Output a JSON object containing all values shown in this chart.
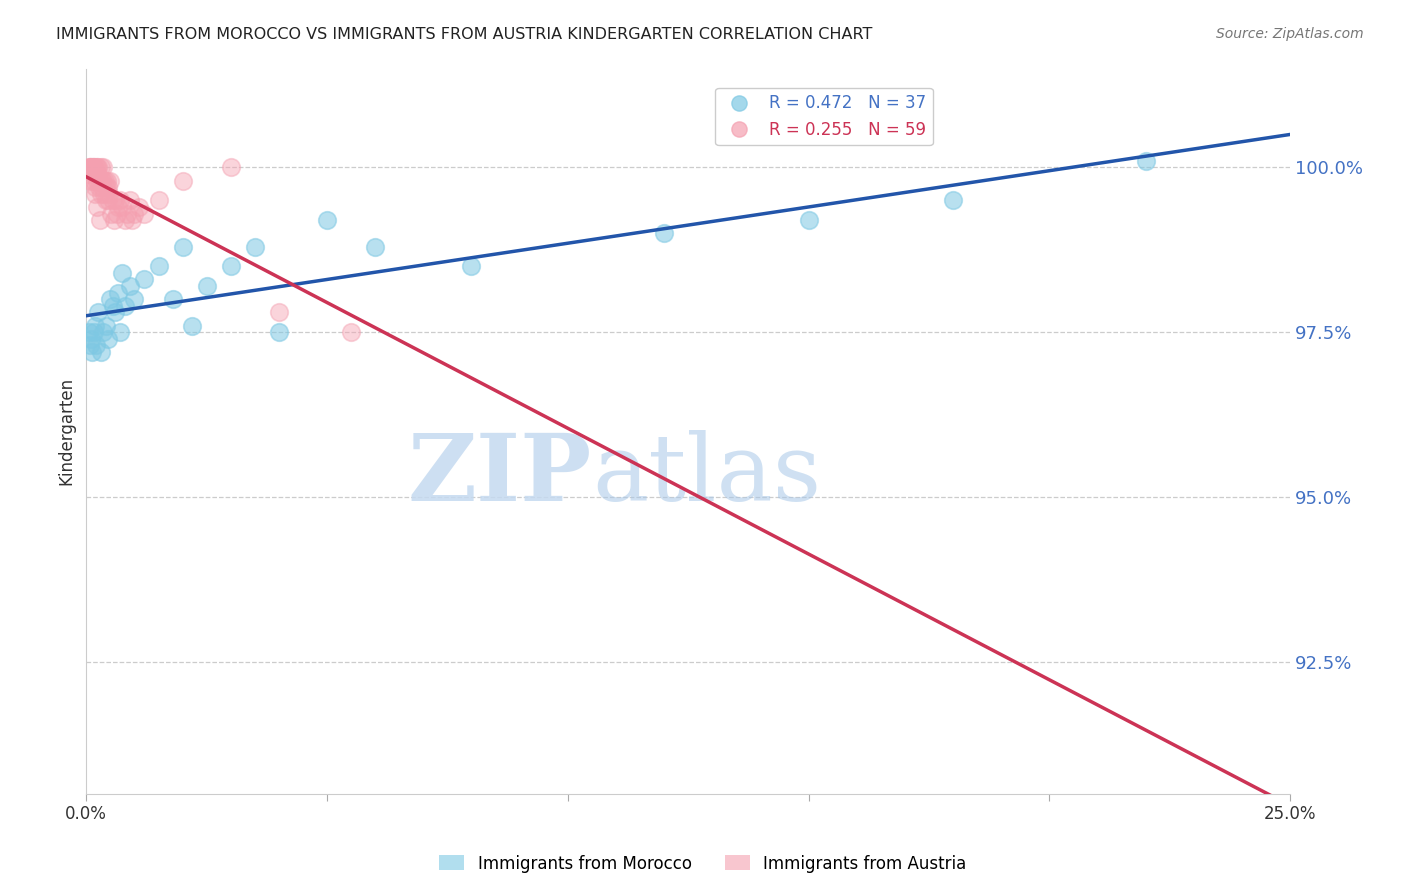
{
  "title": "IMMIGRANTS FROM MOROCCO VS IMMIGRANTS FROM AUSTRIA KINDERGARTEN CORRELATION CHART",
  "source": "Source: ZipAtlas.com",
  "ylabel": "Kindergarten",
  "ytick_values": [
    92.5,
    95.0,
    97.5,
    100.0
  ],
  "xlim": [
    0.0,
    25.0
  ],
  "ylim": [
    90.5,
    101.5
  ],
  "legend1_label": "R = 0.472   N = 37",
  "legend2_label": "R = 0.255   N = 59",
  "blue_color": "#7ec8e3",
  "pink_color": "#f4a0b0",
  "blue_line_color": "#2255aa",
  "pink_line_color": "#cc3355",
  "watermark_zip": "ZIP",
  "watermark_atlas": "atlas",
  "morocco_x": [
    0.05,
    0.08,
    0.1,
    0.12,
    0.15,
    0.18,
    0.2,
    0.25,
    0.3,
    0.35,
    0.4,
    0.45,
    0.5,
    0.6,
    0.7,
    0.8,
    0.9,
    1.0,
    1.2,
    1.5,
    1.8,
    2.0,
    2.5,
    3.0,
    3.5,
    4.0,
    5.0,
    6.0,
    8.0,
    12.0,
    15.0,
    18.0,
    22.0,
    0.55,
    0.65,
    0.75,
    2.2
  ],
  "morocco_y": [
    97.5,
    97.3,
    97.4,
    97.2,
    97.5,
    97.6,
    97.3,
    97.8,
    97.2,
    97.5,
    97.6,
    97.4,
    98.0,
    97.8,
    97.5,
    97.9,
    98.2,
    98.0,
    98.3,
    98.5,
    98.0,
    98.8,
    98.2,
    98.5,
    98.8,
    97.5,
    99.2,
    98.8,
    98.5,
    99.0,
    99.2,
    99.5,
    100.1,
    97.9,
    98.1,
    98.4,
    97.6
  ],
  "austria_x": [
    0.03,
    0.05,
    0.07,
    0.08,
    0.1,
    0.1,
    0.12,
    0.13,
    0.15,
    0.15,
    0.16,
    0.17,
    0.18,
    0.2,
    0.2,
    0.22,
    0.23,
    0.25,
    0.25,
    0.27,
    0.28,
    0.3,
    0.3,
    0.32,
    0.33,
    0.35,
    0.35,
    0.37,
    0.38,
    0.4,
    0.4,
    0.42,
    0.45,
    0.46,
    0.48,
    0.5,
    0.52,
    0.55,
    0.58,
    0.6,
    0.63,
    0.65,
    0.7,
    0.75,
    0.8,
    0.85,
    0.9,
    0.95,
    1.0,
    1.1,
    1.2,
    1.5,
    2.0,
    3.0,
    4.0,
    5.5,
    0.18,
    0.22,
    0.28
  ],
  "austria_y": [
    99.9,
    100.0,
    100.0,
    100.0,
    100.0,
    99.8,
    100.0,
    100.0,
    100.0,
    99.9,
    100.0,
    99.8,
    99.7,
    100.0,
    99.9,
    99.8,
    100.0,
    99.9,
    100.0,
    99.7,
    99.8,
    99.6,
    100.0,
    99.8,
    99.7,
    99.8,
    100.0,
    99.6,
    99.8,
    99.7,
    99.5,
    99.8,
    99.7,
    99.5,
    99.6,
    99.8,
    99.3,
    99.5,
    99.2,
    99.5,
    99.3,
    99.4,
    99.5,
    99.4,
    99.2,
    99.3,
    99.5,
    99.2,
    99.3,
    99.4,
    99.3,
    99.5,
    99.8,
    100.0,
    97.8,
    97.5,
    99.6,
    99.4,
    99.2
  ]
}
